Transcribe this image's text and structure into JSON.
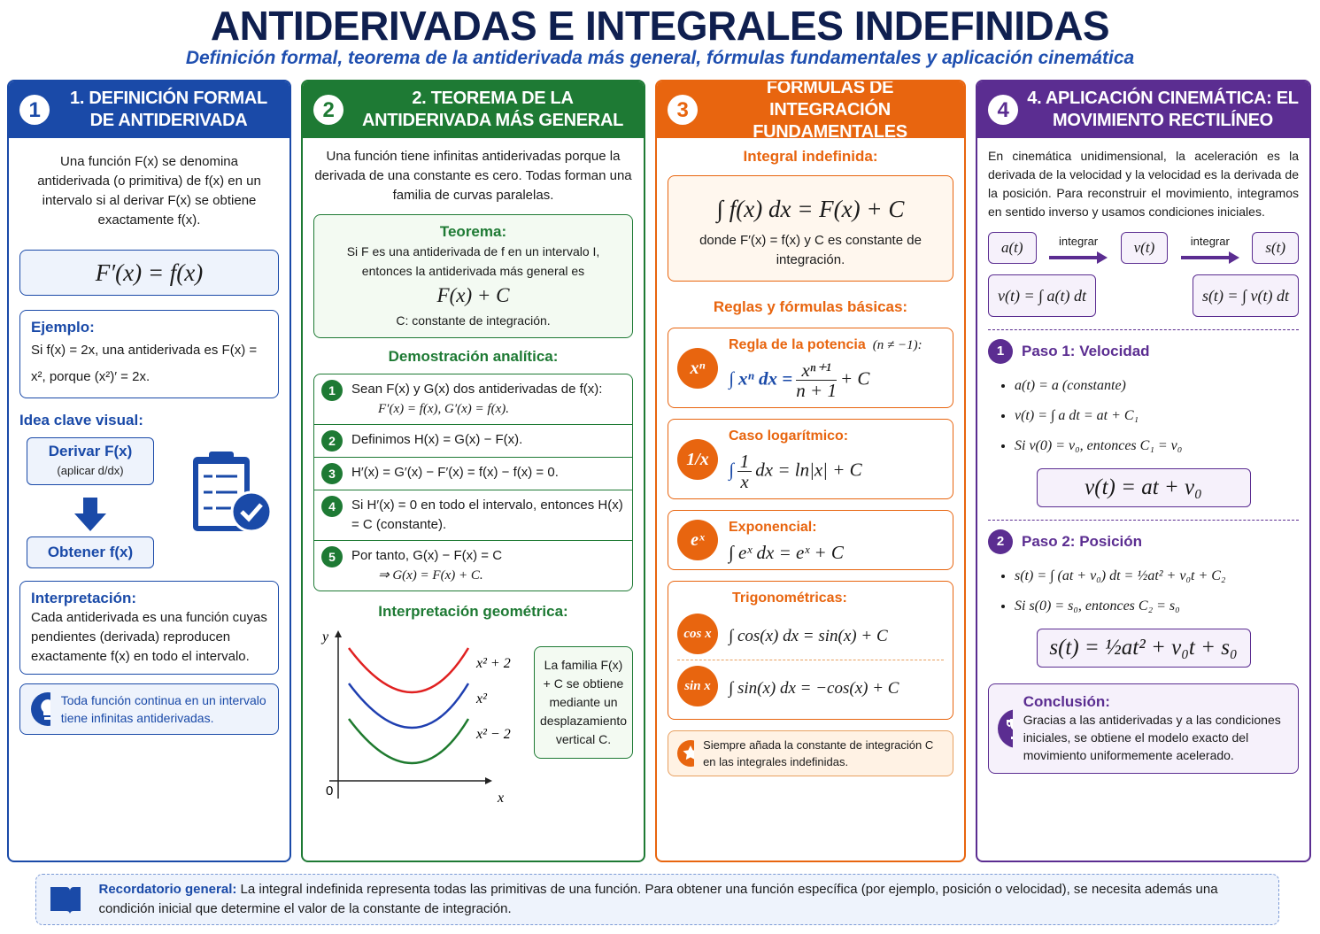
{
  "header": {
    "title": "ANTIDERIVADAS E INTEGRALES INDEFINIDAS",
    "subtitle": "Definición formal, teorema de la antiderivada más general, fórmulas fundamentales y aplicación cinemática"
  },
  "sections": [
    {
      "number": "1",
      "title": "1. DEFINICIÓN FORMAL DE ANTIDERIVADA",
      "intro": "Una función F(x) se denomina antiderivada (o primitiva) de f(x) en un intervalo si al derivar F(x) se obtiene exactamente f(x).",
      "formula": "F′(x) = f(x)",
      "example_title": "Ejemplo:",
      "example_text": "Si f(x) = 2x, una antiderivada es F(x) = x², porque (x²)′ = 2x.",
      "visual_title": "Idea clave visual:",
      "derive": "Derivar F(x)",
      "derive_note": "(aplicar d/dx)",
      "obtain": "Obtener f(x)",
      "interpretation_title": "Interpretación:",
      "interpretation_text": "Cada antiderivada es una función cuyas pendientes (derivada) reproducen exactamente f(x) en todo el intervalo.",
      "tip": "Toda función continua en un intervalo tiene infinitas antiderivadas."
    },
    {
      "number": "2",
      "title": "2. TEOREMA DE LA ANTIDERIVADA MÁS GENERAL",
      "intro": "Una función tiene infinitas antiderivadas porque la derivada de una constante es cero. Todas forman una familia de curvas paralelas.",
      "theorem_title": "Teorema:",
      "theorem_text": "Si F es una antiderivada de f en un intervalo I, entonces la antiderivada más general es",
      "theorem_formula": "F(x) + C",
      "theorem_note": "C: constante de integración.",
      "proof_title": "Demostración analítica:",
      "proof_steps": [
        {
          "number": "1",
          "text": "Sean F(x) y G(x) dos antiderivadas de f(x):",
          "formula": "F′(x) = f(x),     G′(x) = f(x)."
        },
        {
          "number": "2",
          "text": "Definimos  H(x) = G(x) − F(x)."
        },
        {
          "number": "3",
          "text": "H′(x) = G′(x) − F′(x) = f(x) − f(x) = 0."
        },
        {
          "number": "4",
          "text": "Si H′(x) = 0 en todo el intervalo, entonces H(x) = C (constante)."
        },
        {
          "number": "5",
          "text": "Por tanto,  G(x) − F(x) = C",
          "formula": "⇒     G(x) = F(x) + C."
        }
      ],
      "geometry_title": "Interpretación geométrica:",
      "graph": {
        "y_label": "y",
        "x_label": "x",
        "origin": "0",
        "curves": [
          "x² + 2",
          "x²",
          "x² − 2"
        ]
      },
      "family_note": "La familia F(x) + C se obtiene mediante un desplazamiento vertical C."
    },
    {
      "number": "3",
      "title": "FÓRMULAS DE INTEGRACIÓN FUNDAMENTALES",
      "indef_title": "Integral indefinida:",
      "indef_formula": "∫ f(x) dx = F(x) + C",
      "indef_note": "donde F′(x) = f(x) y C es constante de integración.",
      "rules_title": "Reglas y fórmulas básicas:",
      "rules": [
        {
          "icon": "xⁿ",
          "title": "Regla de la potencia",
          "condition": "(n ≠ −1):",
          "left": "∫ xⁿ dx =",
          "num": "xⁿ⁺¹",
          "den": "n + 1",
          "right": "+ C"
        },
        {
          "icon": "1/x",
          "title": "Caso logarítmico:",
          "left": "∫",
          "num": "1",
          "den": "x",
          "right": "dx = ln|x| + C"
        },
        {
          "icon": "eˣ",
          "title": "Exponencial:",
          "formula": "∫ eˣ dx = eˣ + C"
        }
      ],
      "trig_title": "Trigonométricas:",
      "trig": [
        {
          "icon": "cos x",
          "formula": "∫ cos(x) dx = sin(x) + C"
        },
        {
          "icon": "sin x",
          "formula": "∫ sin(x) dx = −cos(x) + C"
        }
      ],
      "note": "Siempre añada la constante de integración C en las integrales indefinidas."
    },
    {
      "number": "4",
      "title": "4. APLICACIÓN CINEMÁTICA: EL MOVIMIENTO RECTILÍNEO",
      "intro": "En cinemática unidimensional, la aceleración es la derivada de la velocidad y la velocidad es la derivada de la posición. Para reconstruir el movimiento, integramos en sentido inverso y usamos condiciones iniciales.",
      "flow": [
        "a(t)",
        "v(t)",
        "s(t)"
      ],
      "arrow_label": "integrar",
      "relations": [
        "v(t) = ∫ a(t) dt",
        "s(t) = ∫ v(t) dt"
      ],
      "steps": [
        {
          "number": "1",
          "title": "Paso 1: Velocidad",
          "bullets": [
            "a(t) = a  (constante)",
            "v(t) = ∫ a dt = at + C₁",
            "Si v(0) = v₀, entonces C₁ = v₀"
          ],
          "result": "v(t) = at + v₀"
        },
        {
          "number": "2",
          "title": "Paso 2: Posición",
          "bullets": [
            "s(t) = ∫ (at + v₀) dt = ½at² + v₀t + C₂",
            "Si s(0) = s₀, entonces C₂ = s₀"
          ],
          "result": "s(t) = ½at² + v₀t + s₀"
        }
      ],
      "conclusion_title": "Conclusión:",
      "conclusion_text": "Gracias a las antiderivadas y a las condiciones iniciales, se obtiene el modelo exacto del movimiento uniformemente acelerado."
    }
  ],
  "footer": {
    "label": "Recordatorio general:",
    "text": "La integral indefinida representa todas las primitivas de una función. Para obtener una función específica (por ejemplo, posición o velocidad), se necesita además una condición inicial que determine el valor de la constante de integración."
  }
}
